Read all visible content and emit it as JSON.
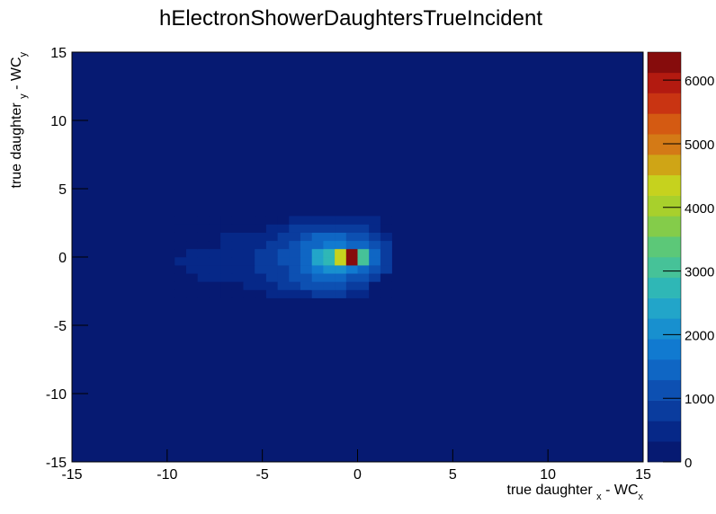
{
  "chart_data": {
    "type": "heatmap",
    "title": "hElectronShowerDaughtersTrueIncident",
    "xlabel_parts": [
      "true daughter ",
      "x",
      " - WC",
      "x"
    ],
    "ylabel_parts": [
      "true daughter ",
      "y",
      " - WC",
      "y"
    ],
    "xlim": [
      -15,
      15
    ],
    "ylim": [
      -15,
      15
    ],
    "xticks": [
      -15,
      -10,
      -5,
      0,
      5,
      10,
      15
    ],
    "yticks": [
      -15,
      -10,
      -5,
      0,
      5,
      10,
      15
    ],
    "zlim": [
      0,
      6440
    ],
    "zticks": [
      0,
      1000,
      2000,
      3000,
      4000,
      5000,
      6000
    ],
    "colors": [
      "#061a72",
      "#062888",
      "#0a3c9e",
      "#0d50b2",
      "#0f66c4",
      "#117ad0",
      "#1890cf",
      "#22a5c9",
      "#2fb7b6",
      "#46c298",
      "#5cc878",
      "#84cc4a",
      "#a8d02c",
      "#c6d21e",
      "#cfa516",
      "#d47a16",
      "#d45a12",
      "#c93412",
      "#b31a10",
      "#860c0c"
    ],
    "xbins": [
      -9.6,
      -9.0,
      -8.4,
      -7.8,
      -7.2,
      -6.6,
      -6.0,
      -5.4,
      -4.8,
      -4.2,
      -3.6,
      -3.0,
      -2.4,
      -1.8,
      -1.2,
      -0.6,
      0,
      0.6,
      1.2,
      1.8
    ],
    "ybins": [
      -3.0,
      -2.4,
      -1.8,
      -1.2,
      -0.6,
      0,
      0.6,
      1.2,
      1.8,
      2.4,
      3.0
    ],
    "z": [
      [
        0,
        0,
        0,
        0,
        0,
        0,
        0,
        0,
        500,
        500,
        600,
        600,
        700,
        700,
        700,
        600,
        600,
        0,
        0
      ],
      [
        0,
        0,
        0,
        0,
        0,
        0,
        500,
        600,
        600,
        700,
        800,
        1000,
        1000,
        1000,
        1000,
        900,
        700,
        0,
        0
      ],
      [
        0,
        0,
        500,
        500,
        500,
        500,
        600,
        600,
        700,
        800,
        1000,
        1200,
        1400,
        1500,
        1400,
        1200,
        1000,
        700,
        0
      ],
      [
        0,
        500,
        500,
        500,
        500,
        600,
        600,
        700,
        800,
        900,
        1100,
        1300,
        1700,
        2000,
        2000,
        1700,
        1300,
        1000,
        700
      ],
      [
        500,
        500,
        500,
        500,
        500,
        600,
        600,
        700,
        800,
        1000,
        1200,
        1500,
        2300,
        2600,
        4200,
        6400,
        3200,
        1400,
        800
      ],
      [
        0,
        500,
        500,
        500,
        500,
        600,
        600,
        700,
        800,
        1000,
        1200,
        1500,
        2300,
        2600,
        4200,
        6400,
        3200,
        1400,
        800
      ],
      [
        0,
        0,
        0,
        0,
        500,
        500,
        600,
        600,
        700,
        800,
        1000,
        1300,
        1500,
        1800,
        1800,
        1500,
        1300,
        1000,
        700
      ],
      [
        0,
        0,
        0,
        0,
        500,
        500,
        500,
        500,
        600,
        700,
        900,
        1200,
        1300,
        1300,
        1300,
        1200,
        1000,
        800,
        600
      ],
      [
        0,
        0,
        0,
        0,
        0,
        0,
        0,
        0,
        600,
        600,
        700,
        700,
        800,
        800,
        800,
        700,
        700,
        600,
        0
      ],
      [
        0,
        0,
        0,
        0,
        0,
        0,
        0,
        0,
        0,
        0,
        600,
        600,
        600,
        600,
        600,
        600,
        600,
        600,
        0
      ]
    ]
  }
}
